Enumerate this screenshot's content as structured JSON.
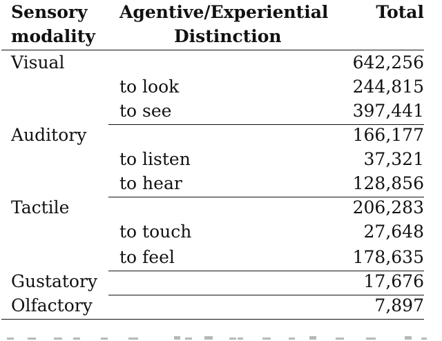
{
  "table": {
    "headers": {
      "col1_line1": "Sensory",
      "col1_line2": "modality",
      "col2_line1": "Agentive/Experiential",
      "col2_line2": "Distinction",
      "col3": "Total"
    },
    "rows": [
      {
        "modality": "Visual",
        "distinction": "",
        "total": "642,256"
      },
      {
        "modality": "",
        "distinction": "to look",
        "total": "244,815"
      },
      {
        "modality": "",
        "distinction": "to see",
        "total": "397,441"
      },
      {
        "modality": "Auditory",
        "distinction": "",
        "total": "166,177"
      },
      {
        "modality": "",
        "distinction": "to listen",
        "total": "37,321"
      },
      {
        "modality": "",
        "distinction": "to hear",
        "total": "128,856"
      },
      {
        "modality": "Tactile",
        "distinction": "",
        "total": "206,283"
      },
      {
        "modality": "",
        "distinction": "to touch",
        "total": "27,648"
      },
      {
        "modality": "",
        "distinction": "to feel",
        "total": "178,635"
      },
      {
        "modality": "Gustatory",
        "distinction": "",
        "total": "17,676"
      },
      {
        "modality": "Olfactory",
        "distinction": "",
        "total": "7,897"
      }
    ]
  }
}
